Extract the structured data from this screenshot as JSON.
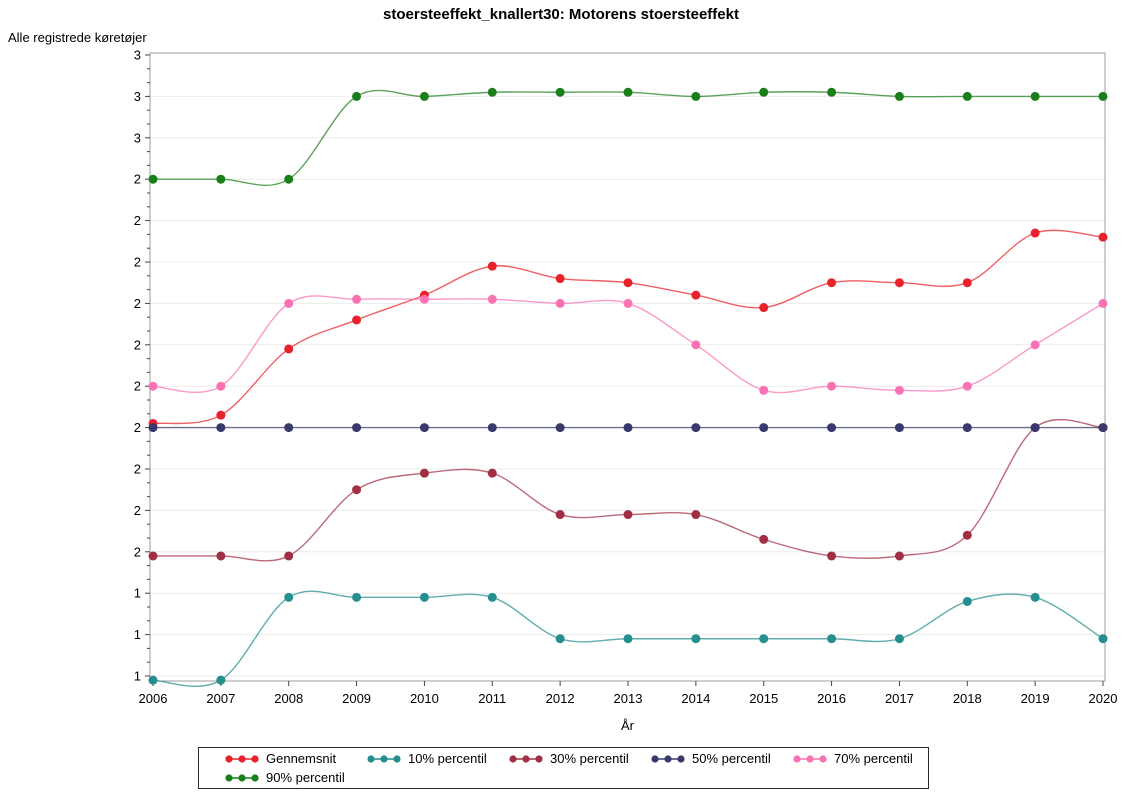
{
  "title": "stoersteeffekt_knallert30: Motorens stoersteeffekt",
  "chart_data": {
    "type": "line",
    "title": "stoersteeffekt_knallert30: Motorens stoersteeffekt",
    "xlabel": "År",
    "ylabel": "Alle registrede køretøjer",
    "x": [
      2006,
      2007,
      2008,
      2009,
      2010,
      2011,
      2012,
      2013,
      2014,
      2015,
      2016,
      2017,
      2018,
      2019,
      2020
    ],
    "x_tick_labels": [
      "2006",
      "2007",
      "2008",
      "2009",
      "2010",
      "2011",
      "2012",
      "2013",
      "2014",
      "2015",
      "2016",
      "2017",
      "2018",
      "2019",
      "2020"
    ],
    "y_axis": {
      "top_value": 2.7,
      "tick_step": 0.1,
      "tick_count": 16,
      "minor_ticks_per_gap": 2,
      "tick_labels": [
        "3",
        "3",
        "3",
        "2",
        "2",
        "2",
        "2",
        "2",
        "2",
        "2",
        "2",
        "2",
        "2",
        "1",
        "1",
        "1"
      ]
    },
    "ylim": [
      1.2,
      2.75
    ],
    "grid": true,
    "legend_position": "bottom",
    "series": [
      {
        "name": "Gennemsnit",
        "color": "#e9212b",
        "values": [
          1.81,
          1.83,
          1.99,
          2.06,
          2.12,
          2.19,
          2.16,
          2.15,
          2.12,
          2.09,
          2.15,
          2.15,
          2.15,
          2.27,
          2.26
        ]
      },
      {
        "name": "10% percentil",
        "color": "#258e8e",
        "values": [
          1.19,
          1.19,
          1.39,
          1.39,
          1.39,
          1.39,
          1.29,
          1.29,
          1.29,
          1.29,
          1.29,
          1.29,
          1.38,
          1.39,
          1.29
        ]
      },
      {
        "name": "30% percentil",
        "color": "#a12f44",
        "values": [
          1.49,
          1.49,
          1.49,
          1.65,
          1.69,
          1.69,
          1.59,
          1.59,
          1.59,
          1.53,
          1.49,
          1.49,
          1.54,
          1.8,
          1.8
        ]
      },
      {
        "name": "50% percentil",
        "color": "#3a396c",
        "values": [
          1.8,
          1.8,
          1.8,
          1.8,
          1.8,
          1.8,
          1.8,
          1.8,
          1.8,
          1.8,
          1.8,
          1.8,
          1.8,
          1.8,
          1.8
        ]
      },
      {
        "name": "70% percentil",
        "color": "#f972b4",
        "values": [
          1.9,
          1.9,
          2.1,
          2.11,
          2.11,
          2.11,
          2.1,
          2.1,
          2.0,
          1.89,
          1.9,
          1.89,
          1.9,
          2.0,
          2.1
        ]
      },
      {
        "name": "90% percentil",
        "color": "#1a7f1a",
        "values": [
          2.4,
          2.4,
          2.4,
          2.6,
          2.6,
          2.61,
          2.61,
          2.61,
          2.6,
          2.61,
          2.61,
          2.6,
          2.6,
          2.6,
          2.6
        ]
      }
    ],
    "style": {
      "grid_color": "#ececec",
      "frame_color": "#9d9d9d",
      "tick_color": "#444444"
    }
  }
}
